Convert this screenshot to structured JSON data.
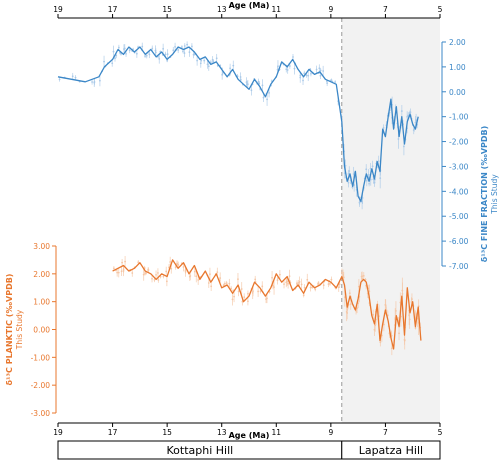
{
  "chart_data": [
    {
      "type": "line",
      "title": "",
      "xlabel": "Age (Ma)",
      "ylabel": "δ¹³C FINE FRACTION (‰VPDB)",
      "ylabel_sub": "This Study",
      "x_reversed": true,
      "xlim": [
        19,
        5
      ],
      "ylim": [
        -7,
        2
      ],
      "x_ticks": [
        "19",
        "17",
        "15",
        "13",
        "11",
        "9",
        "7",
        "5"
      ],
      "y_ticks": [
        "2.00",
        "1.00",
        "0.00",
        "-1.00",
        "-2.00",
        "-3.00",
        "-4.00",
        "-5.00",
        "-6.00",
        "-7.00"
      ],
      "y_axis_side": "right",
      "grid": false,
      "color": "#3b87c7",
      "series": [
        {
          "x": [
            19.0,
            18.5,
            18.0,
            17.5,
            17.3,
            17.0,
            16.8,
            16.6,
            16.4,
            16.2,
            16.0,
            15.8,
            15.6,
            15.4,
            15.2,
            15.0,
            14.8,
            14.6,
            14.4,
            14.2,
            14.0,
            13.8,
            13.6,
            13.4,
            13.2,
            13.0,
            12.8,
            12.6,
            12.4,
            12.2,
            12.0,
            11.8,
            11.6,
            11.4,
            11.2,
            11.0,
            10.8,
            10.6,
            10.4,
            10.2,
            10.0,
            9.8,
            9.6,
            9.4,
            9.2,
            9.0,
            8.8,
            8.6,
            8.5,
            8.4,
            8.3,
            8.2,
            8.1,
            8.0,
            7.9,
            7.8,
            7.7,
            7.6,
            7.5,
            7.4,
            7.3,
            7.2,
            7.1,
            7.0,
            6.9,
            6.8,
            6.7,
            6.6,
            6.5,
            6.4,
            6.3,
            6.2,
            6.1,
            6.0,
            5.9,
            5.8
          ],
          "y": [
            0.6,
            0.5,
            0.4,
            0.6,
            1.0,
            1.3,
            1.7,
            1.5,
            1.8,
            1.6,
            1.8,
            1.5,
            1.7,
            1.4,
            1.6,
            1.3,
            1.5,
            1.8,
            1.7,
            1.8,
            1.6,
            1.3,
            1.4,
            1.1,
            1.2,
            0.9,
            0.6,
            0.9,
            0.5,
            0.3,
            0.1,
            0.5,
            0.2,
            -0.2,
            0.3,
            0.6,
            1.2,
            1.0,
            1.3,
            0.9,
            0.6,
            0.9,
            0.7,
            0.8,
            0.5,
            0.4,
            0.3,
            -1.2,
            -3.0,
            -3.6,
            -3.3,
            -3.8,
            -3.2,
            -4.2,
            -4.4,
            -3.8,
            -3.3,
            -3.6,
            -3.1,
            -3.5,
            -2.8,
            -3.2,
            -1.5,
            -1.8,
            -1.0,
            -0.3,
            -1.5,
            -0.6,
            -1.8,
            -1.0,
            -2.1,
            -1.2,
            -0.9,
            -1.3,
            -1.5,
            -1.0
          ]
        }
      ]
    },
    {
      "type": "line",
      "title": "",
      "xlabel": "Age (Ma)",
      "ylabel": "δ¹³C PLANKTIC (‰VPDB)",
      "ylabel_sub": "This Study",
      "x_reversed": true,
      "xlim": [
        19,
        5
      ],
      "ylim": [
        -3,
        3
      ],
      "x_ticks": [
        "19",
        "17",
        "15",
        "13",
        "11",
        "9",
        "7",
        "5"
      ],
      "y_ticks": [
        "3.00",
        "2.00",
        "1.00",
        "0.00",
        "-1.00",
        "-2.00",
        "-3.00"
      ],
      "y_axis_side": "left",
      "grid": false,
      "color": "#e8772e",
      "series": [
        {
          "x": [
            17.0,
            16.8,
            16.6,
            16.4,
            16.2,
            16.0,
            15.8,
            15.6,
            15.4,
            15.2,
            15.0,
            14.8,
            14.6,
            14.4,
            14.2,
            14.0,
            13.8,
            13.6,
            13.4,
            13.2,
            13.0,
            12.8,
            12.6,
            12.4,
            12.2,
            12.0,
            11.8,
            11.6,
            11.4,
            11.2,
            11.0,
            10.8,
            10.6,
            10.4,
            10.2,
            10.0,
            9.8,
            9.6,
            9.4,
            9.2,
            9.0,
            8.8,
            8.6,
            8.5,
            8.4,
            8.3,
            8.2,
            8.1,
            8.0,
            7.9,
            7.8,
            7.7,
            7.6,
            7.5,
            7.4,
            7.3,
            7.2,
            7.1,
            7.0,
            6.9,
            6.8,
            6.7,
            6.6,
            6.5,
            6.4,
            6.3,
            6.2,
            6.1,
            6.0,
            5.9,
            5.8,
            5.7
          ],
          "y": [
            2.1,
            2.2,
            2.3,
            2.1,
            2.2,
            2.4,
            2.1,
            2.0,
            1.8,
            2.0,
            1.9,
            2.5,
            2.2,
            2.4,
            2.0,
            2.3,
            1.8,
            2.1,
            1.7,
            2.0,
            1.5,
            1.6,
            1.3,
            1.6,
            1.0,
            1.2,
            1.7,
            1.5,
            1.2,
            1.5,
            2.0,
            1.7,
            1.9,
            1.4,
            1.6,
            1.3,
            1.7,
            1.5,
            1.6,
            1.8,
            1.7,
            1.5,
            1.9,
            1.6,
            0.8,
            1.2,
            0.9,
            0.7,
            1.1,
            1.7,
            1.8,
            1.7,
            1.2,
            0.5,
            0.2,
            0.9,
            -0.4,
            0.2,
            0.7,
            0.3,
            -0.3,
            -0.7,
            0.5,
            0.1,
            1.2,
            -0.2,
            1.5,
            0.6,
            1.0,
            0.1,
            0.8,
            -0.4
          ]
        }
      ]
    }
  ],
  "x_top_label": "Age (Ma)",
  "x_bottom_label": "Age (Ma)",
  "divider_age": 8.6,
  "shaded_region": [
    8.6,
    5
  ],
  "bands": [
    {
      "label": "Kottaphi Hill",
      "from": 19,
      "to": 8.6
    },
    {
      "label": "Lapatza Hill",
      "from": 8.6,
      "to": 5
    }
  ],
  "colors": {
    "fine_fraction": "#3b87c7",
    "fine_fraction_light": "#a9c9e8",
    "planktic": "#e8772e",
    "planktic_light": "#f5c6a5",
    "shade": "#f2f2f2",
    "divider": "#999999"
  }
}
